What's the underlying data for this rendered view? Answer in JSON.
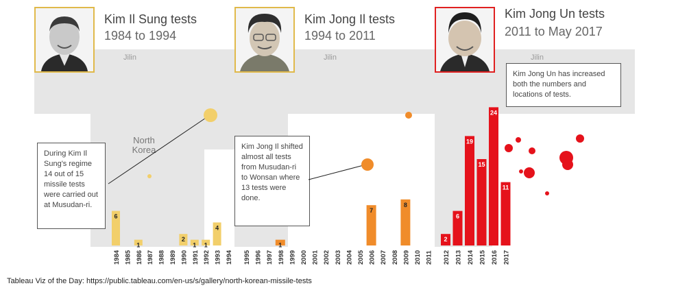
{
  "panels": [
    {
      "title": "Kim Il Sung tests",
      "years": "1984 to 1994"
    },
    {
      "title": "Kim Jong Il tests",
      "years": "1994 to 2011"
    },
    {
      "title": "Kim Jong Un tests",
      "years": "2011 to May 2017"
    }
  ],
  "annotations": {
    "kim_il_sung": "During Kim Il Sung's regime 14 out of 15 missile tests were carried out at Musudan-ri.",
    "kim_jong_il": "Kim Jong Il shifted almost all tests from Musudan-ri to Wonsan where 13 tests were done.",
    "kim_jong_un": "Kim Jong Un has increased both the numbers and locations of tests."
  },
  "map_labels": {
    "jilin": "Jilin",
    "north_korea": "North Korea"
  },
  "footer": "Tableau Viz of the Day: https://public.tableau.com/en-us/s/gallery/north-korean-missile-tests",
  "colors": {
    "kim_il_sung": "#f2cf6b",
    "kim_jong_il": "#f08c2a",
    "kim_jong_un": "#e5121b"
  },
  "chart_data": [
    {
      "type": "bar",
      "series": [
        {
          "name": "Kim Il Sung tests",
          "values": [
            6,
            0,
            1,
            0,
            0,
            0,
            2,
            1,
            1,
            4,
            0
          ]
        }
      ],
      "categories": [
        "1984",
        "1985",
        "1986",
        "1987",
        "1988",
        "1989",
        "1990",
        "1991",
        "1992",
        "1993",
        "1994"
      ],
      "data_labels": [
        "6",
        "",
        "1",
        "",
        "",
        "",
        "2",
        "1",
        "1",
        "4",
        ""
      ],
      "ylim": [
        0,
        26
      ]
    },
    {
      "type": "bar",
      "series": [
        {
          "name": "Kim Jong Il tests",
          "values": [
            0,
            0,
            0,
            1,
            0,
            0,
            0,
            0,
            0,
            0,
            0,
            7,
            0,
            0,
            8,
            0,
            0
          ]
        }
      ],
      "categories": [
        "1995",
        "1996",
        "1997",
        "1998",
        "1999",
        "2000",
        "2001",
        "2002",
        "2003",
        "2004",
        "2005",
        "2006",
        "2007",
        "2008",
        "2009",
        "2010",
        "2011"
      ],
      "data_labels": [
        "",
        "",
        "",
        "1",
        "",
        "",
        "",
        "",
        "",
        "",
        "",
        "7",
        "",
        "",
        "8",
        "",
        ""
      ],
      "ylim": [
        0,
        26
      ]
    },
    {
      "type": "bar",
      "series": [
        {
          "name": "Kim Jong Un tests",
          "values": [
            2,
            6,
            19,
            15,
            24,
            11
          ]
        }
      ],
      "categories": [
        "2012",
        "2013",
        "2014",
        "2015",
        "2016",
        "2017"
      ],
      "data_labels": [
        "2",
        "6",
        "19",
        "15",
        "24",
        "11"
      ],
      "ylim": [
        0,
        26
      ]
    }
  ]
}
